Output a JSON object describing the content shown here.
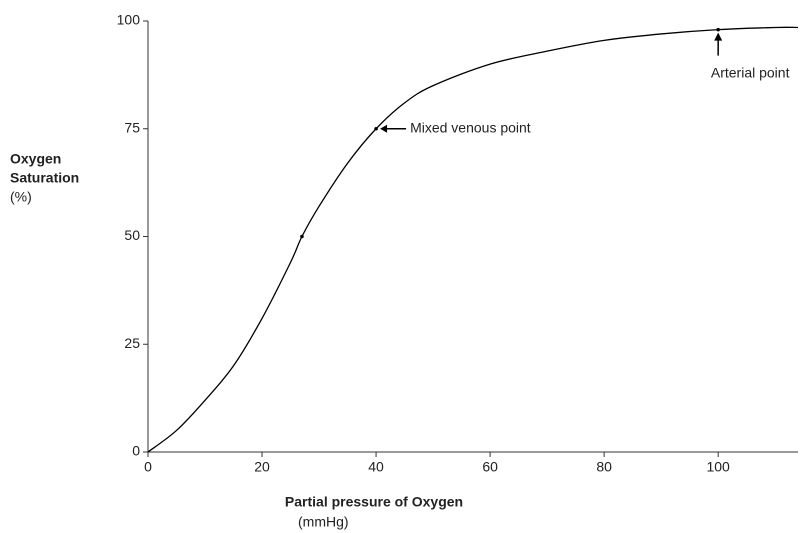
{
  "chart_data": {
    "type": "line",
    "ylabel": [
      "Oxygen",
      "Saturation"
    ],
    "ylabel_unit": "(%)",
    "xlabel": "Partial pressure of Oxygen",
    "xlabel_unit": "(mmHg)",
    "x": [
      0,
      5,
      10,
      15,
      20,
      25,
      27,
      30,
      35,
      40,
      45,
      50,
      60,
      70,
      80,
      90,
      100,
      110,
      114
    ],
    "series": [
      {
        "color": "#000000",
        "values": [
          0,
          5,
          12,
          20,
          31,
          44,
          50,
          57,
          67,
          75,
          81,
          85,
          90,
          93,
          95.5,
          97,
          98,
          98.5,
          98.5
        ]
      }
    ],
    "markers": {
      "x": [
        27,
        40,
        100
      ],
      "y": [
        50,
        75,
        98
      ]
    },
    "annotations": [
      {
        "text": "Mixed venous point",
        "x": 40,
        "y": 75
      },
      {
        "text": "Arterial point",
        "x": 100,
        "y": 98
      }
    ],
    "xlim": [
      0,
      114
    ],
    "ylim": [
      0,
      100
    ],
    "xticks": [
      0,
      20,
      40,
      60,
      80,
      100
    ],
    "yticks": [
      0,
      25,
      50,
      75,
      100
    ],
    "grid": false
  }
}
